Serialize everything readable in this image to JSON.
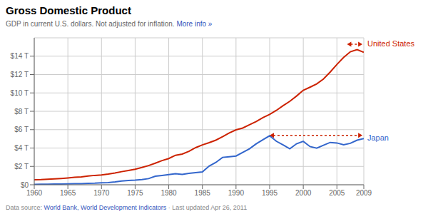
{
  "chart_data": {
    "type": "line",
    "title": "Gross Domestic Product",
    "title_color": "#000000",
    "subtitle": "GDP in current U.S. dollars. Not adjusted for inflation.",
    "subtitle_color": "#666666",
    "subtitle_link": {
      "text": "More info »",
      "color": "#3355bb"
    },
    "footer": [
      {
        "text": "Data source: ",
        "color": "#888888"
      },
      {
        "text": "World Bank, World Development Indicators",
        "color": "#3355bb"
      },
      {
        "text": " · Last updated Apr 26, 2011",
        "color": "#888888"
      }
    ],
    "x": [
      1960,
      1961,
      1962,
      1963,
      1964,
      1965,
      1966,
      1967,
      1968,
      1969,
      1970,
      1971,
      1972,
      1973,
      1974,
      1975,
      1976,
      1977,
      1978,
      1979,
      1980,
      1981,
      1982,
      1983,
      1984,
      1985,
      1986,
      1987,
      1988,
      1989,
      1990,
      1991,
      1992,
      1993,
      1994,
      1995,
      1996,
      1997,
      1998,
      1999,
      2000,
      2001,
      2002,
      2003,
      2004,
      2005,
      2006,
      2007,
      2008,
      2009
    ],
    "series": [
      {
        "name": "United States",
        "color": "#cc2200",
        "values": [
          0.543,
          0.563,
          0.605,
          0.638,
          0.685,
          0.743,
          0.815,
          0.861,
          0.943,
          1.019,
          1.073,
          1.165,
          1.282,
          1.428,
          1.549,
          1.688,
          1.877,
          2.086,
          2.352,
          2.631,
          2.857,
          3.211,
          3.345,
          3.638,
          4.04,
          4.339,
          4.579,
          4.855,
          5.236,
          5.641,
          5.979,
          6.174,
          6.539,
          6.879,
          7.309,
          7.664,
          8.1,
          8.609,
          9.089,
          9.661,
          10.285,
          10.622,
          10.978,
          11.511,
          12.275,
          13.094,
          13.856,
          14.478,
          14.719,
          14.419
        ]
      },
      {
        "name": "Japan",
        "color": "#3366cc",
        "values": [
          0.044,
          0.054,
          0.061,
          0.069,
          0.081,
          0.091,
          0.108,
          0.124,
          0.147,
          0.17,
          0.212,
          0.231,
          0.307,
          0.412,
          0.458,
          0.499,
          0.564,
          0.669,
          0.931,
          1.017,
          1.105,
          1.2,
          1.131,
          1.239,
          1.319,
          1.399,
          2.034,
          2.432,
          2.981,
          3.054,
          3.132,
          3.533,
          3.913,
          4.454,
          4.908,
          5.334,
          4.736,
          4.344,
          3.914,
          4.463,
          4.731,
          4.159,
          3.98,
          4.302,
          4.606,
          4.552,
          4.356,
          4.515,
          4.849,
          5.035
        ]
      }
    ],
    "xlim": [
      1960,
      2009
    ],
    "xticks": [
      1960,
      1965,
      1970,
      1975,
      1980,
      1985,
      1990,
      1995,
      2000,
      2005,
      2009
    ],
    "ylim": [
      0,
      16
    ],
    "yticks": [
      {
        "value": 0,
        "label": "$0"
      },
      {
        "value": 2,
        "label": "$2 T"
      },
      {
        "value": 4,
        "label": "$4 T"
      },
      {
        "value": 6,
        "label": "$6 T"
      },
      {
        "value": 8,
        "label": "$8 T"
      },
      {
        "value": 10,
        "label": "$10 T"
      },
      {
        "value": 12,
        "label": "$12 T"
      },
      {
        "value": 14,
        "label": "$14 T"
      }
    ],
    "grid": true,
    "annotations": [
      {
        "type": "arrow",
        "x1": 2006.5,
        "x2": 2008.8,
        "y": 15.3,
        "color": "#cc2200",
        "line_style": "dotted"
      },
      {
        "type": "arrow",
        "x1": 1995.0,
        "x2": 2008.8,
        "y": 5.38,
        "color": "#cc2200",
        "line_style": "dotted"
      }
    ]
  }
}
